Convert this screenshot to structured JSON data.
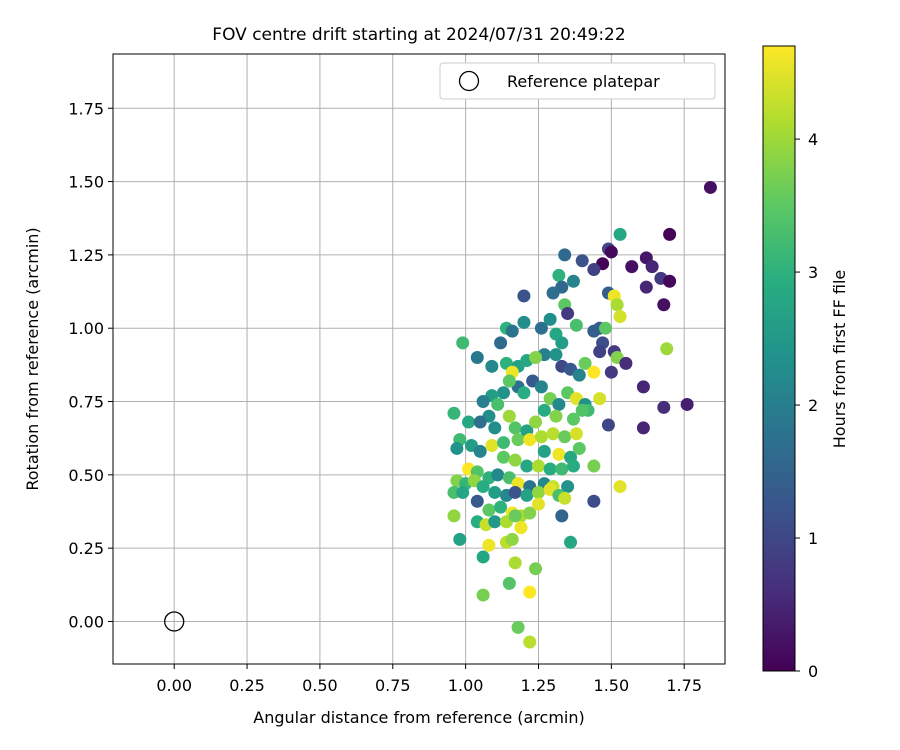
{
  "chart_data": {
    "type": "scatter",
    "title": "FOV centre drift starting at 2024/07/31 20:49:22",
    "xlabel": "Angular distance from reference (arcmin)",
    "ylabel": "Rotation from reference (arcmin)",
    "xlim": [
      -0.21,
      1.89
    ],
    "ylim": [
      -0.145,
      1.935
    ],
    "xticks": [
      "0.00",
      "0.25",
      "0.50",
      "0.75",
      "1.00",
      "1.25",
      "1.50",
      "1.75"
    ],
    "yticks": [
      "0.00",
      "0.25",
      "0.50",
      "0.75",
      "1.00",
      "1.25",
      "1.50",
      "1.75"
    ],
    "grid": true,
    "legend": {
      "placement": "top-right",
      "label": "Reference platepar"
    },
    "reference_point": {
      "x": 0.0,
      "y": 0.0
    },
    "colorbar": {
      "label": "Hours from first FF file",
      "range": [
        0,
        4.7
      ],
      "ticks": [
        "0",
        "1",
        "2",
        "3",
        "4"
      ],
      "colormap": "viridis"
    },
    "points": [
      [
        1.84,
        1.48,
        0.2
      ],
      [
        1.7,
        1.32,
        0.05
      ],
      [
        1.53,
        1.32,
        2.8
      ],
      [
        1.49,
        1.27,
        1.0
      ],
      [
        1.5,
        1.26,
        0.1
      ],
      [
        1.47,
        1.22,
        0.05
      ],
      [
        1.44,
        1.2,
        0.9
      ],
      [
        1.34,
        1.25,
        1.6
      ],
      [
        1.4,
        1.23,
        1.2
      ],
      [
        1.57,
        1.21,
        0.2
      ],
      [
        1.62,
        1.24,
        0.3
      ],
      [
        1.64,
        1.21,
        0.5
      ],
      [
        1.67,
        1.17,
        0.8
      ],
      [
        1.7,
        1.16,
        0.1
      ],
      [
        1.32,
        1.18,
        3.0
      ],
      [
        1.37,
        1.16,
        2.1
      ],
      [
        1.3,
        1.12,
        1.7
      ],
      [
        1.33,
        1.14,
        1.6
      ],
      [
        1.49,
        1.12,
        1.4
      ],
      [
        1.62,
        1.14,
        0.5
      ],
      [
        1.68,
        1.08,
        0.2
      ],
      [
        1.51,
        1.11,
        4.6
      ],
      [
        1.52,
        1.08,
        4.1
      ],
      [
        1.53,
        1.04,
        4.4
      ],
      [
        1.34,
        1.08,
        3.5
      ],
      [
        1.29,
        1.03,
        2.3
      ],
      [
        1.35,
        1.05,
        0.8
      ],
      [
        1.2,
        1.11,
        1.2
      ],
      [
        1.2,
        1.02,
        2.3
      ],
      [
        1.26,
        1.0,
        1.7
      ],
      [
        1.14,
        1.0,
        3.0
      ],
      [
        1.16,
        0.99,
        1.8
      ],
      [
        1.12,
        0.95,
        1.6
      ],
      [
        1.31,
        0.98,
        2.8
      ],
      [
        1.33,
        0.95,
        2.6
      ],
      [
        1.38,
        1.01,
        3.3
      ],
      [
        1.46,
        1.0,
        1.3
      ],
      [
        1.44,
        0.99,
        1.4
      ],
      [
        1.48,
        1.0,
        3.5
      ],
      [
        1.47,
        0.95,
        1.1
      ],
      [
        1.51,
        0.92,
        0.8
      ],
      [
        1.46,
        0.92,
        0.9
      ],
      [
        1.52,
        0.9,
        3.8
      ],
      [
        1.55,
        0.88,
        0.6
      ],
      [
        1.5,
        0.85,
        0.8
      ],
      [
        0.99,
        0.95,
        3.2
      ],
      [
        1.04,
        0.9,
        1.9
      ],
      [
        1.09,
        0.87,
        2.2
      ],
      [
        1.14,
        0.88,
        3.0
      ],
      [
        1.18,
        0.87,
        2.7
      ],
      [
        1.21,
        0.89,
        2.8
      ],
      [
        1.27,
        0.91,
        2.0
      ],
      [
        1.31,
        0.91,
        2.4
      ],
      [
        1.33,
        0.87,
        1.0
      ],
      [
        1.36,
        0.86,
        1.3
      ],
      [
        1.39,
        0.84,
        2.1
      ],
      [
        1.41,
        0.88,
        3.6
      ],
      [
        1.44,
        0.85,
        4.7
      ],
      [
        1.24,
        0.9,
        3.8
      ],
      [
        1.16,
        0.85,
        4.6
      ],
      [
        1.18,
        0.8,
        1.7
      ],
      [
        1.13,
        0.78,
        2.4
      ],
      [
        1.09,
        0.77,
        2.6
      ],
      [
        1.06,
        0.75,
        2.0
      ],
      [
        1.08,
        0.7,
        2.3
      ],
      [
        1.11,
        0.74,
        3.3
      ],
      [
        1.15,
        0.7,
        4.0
      ],
      [
        1.15,
        0.82,
        3.5
      ],
      [
        1.2,
        0.78,
        2.9
      ],
      [
        1.23,
        0.82,
        1.3
      ],
      [
        1.26,
        0.8,
        2.1
      ],
      [
        1.29,
        0.76,
        3.7
      ],
      [
        1.32,
        0.74,
        2.2
      ],
      [
        1.35,
        0.78,
        3.5
      ],
      [
        1.38,
        0.76,
        4.5
      ],
      [
        1.41,
        0.74,
        2.4
      ],
      [
        1.46,
        0.76,
        4.4
      ],
      [
        1.42,
        0.72,
        3.2
      ],
      [
        0.96,
        0.71,
        3.1
      ],
      [
        1.01,
        0.68,
        2.8
      ],
      [
        1.05,
        0.68,
        1.7
      ],
      [
        1.1,
        0.66,
        2.3
      ],
      [
        1.17,
        0.66,
        3.4
      ],
      [
        1.21,
        0.65,
        2.7
      ],
      [
        1.24,
        0.68,
        3.9
      ],
      [
        1.27,
        0.72,
        2.9
      ],
      [
        1.31,
        0.7,
        3.8
      ],
      [
        1.37,
        0.69,
        3.5
      ],
      [
        1.4,
        0.72,
        3.4
      ],
      [
        1.49,
        0.67,
        1.0
      ],
      [
        1.61,
        0.66,
        0.5
      ],
      [
        1.68,
        0.73,
        0.6
      ],
      [
        1.76,
        0.74,
        0.4
      ],
      [
        1.69,
        0.93,
        4.0
      ],
      [
        1.61,
        0.8,
        0.5
      ],
      [
        0.98,
        0.62,
        3.2
      ],
      [
        0.97,
        0.59,
        2.4
      ],
      [
        1.02,
        0.6,
        2.6
      ],
      [
        1.05,
        0.58,
        2.1
      ],
      [
        1.09,
        0.6,
        4.5
      ],
      [
        1.13,
        0.61,
        3.2
      ],
      [
        1.18,
        0.62,
        3.6
      ],
      [
        1.22,
        0.62,
        4.6
      ],
      [
        1.26,
        0.63,
        4.1
      ],
      [
        1.3,
        0.64,
        4.2
      ],
      [
        1.34,
        0.63,
        3.6
      ],
      [
        1.38,
        0.64,
        4.4
      ],
      [
        1.27,
        0.58,
        2.7
      ],
      [
        1.32,
        0.57,
        4.6
      ],
      [
        1.36,
        0.56,
        2.8
      ],
      [
        1.39,
        0.59,
        3.5
      ],
      [
        1.13,
        0.56,
        3.5
      ],
      [
        1.17,
        0.55,
        3.9
      ],
      [
        1.21,
        0.53,
        2.8
      ],
      [
        1.25,
        0.53,
        4.1
      ],
      [
        1.29,
        0.52,
        2.9
      ],
      [
        1.33,
        0.52,
        3.2
      ],
      [
        1.37,
        0.53,
        2.9
      ],
      [
        1.44,
        0.53,
        3.7
      ],
      [
        1.01,
        0.52,
        4.7
      ],
      [
        1.04,
        0.51,
        3.4
      ],
      [
        1.08,
        0.49,
        3.0
      ],
      [
        1.11,
        0.5,
        2.2
      ],
      [
        1.15,
        0.49,
        3.3
      ],
      [
        1.18,
        0.47,
        4.6
      ],
      [
        1.22,
        0.46,
        1.8
      ],
      [
        1.27,
        0.47,
        2.2
      ],
      [
        1.3,
        0.46,
        4.3
      ],
      [
        1.35,
        0.46,
        2.4
      ],
      [
        0.97,
        0.48,
        3.8
      ],
      [
        1.0,
        0.47,
        3.1
      ],
      [
        1.03,
        0.48,
        3.9
      ],
      [
        1.06,
        0.46,
        2.9
      ],
      [
        1.1,
        0.44,
        2.6
      ],
      [
        1.14,
        0.43,
        2.2
      ],
      [
        1.17,
        0.44,
        1.2
      ],
      [
        1.21,
        0.43,
        2.7
      ],
      [
        1.25,
        0.44,
        3.9
      ],
      [
        1.29,
        0.45,
        4.5
      ],
      [
        1.32,
        0.43,
        3.3
      ],
      [
        1.34,
        0.42,
        4.3
      ],
      [
        1.44,
        0.41,
        1.1
      ],
      [
        1.53,
        0.46,
        4.5
      ],
      [
        0.96,
        0.44,
        3.3
      ],
      [
        0.99,
        0.44,
        2.8
      ],
      [
        1.04,
        0.41,
        1.3
      ],
      [
        1.08,
        0.38,
        3.5
      ],
      [
        1.12,
        0.39,
        3.0
      ],
      [
        1.16,
        0.37,
        4.6
      ],
      [
        1.19,
        0.36,
        4.1
      ],
      [
        1.22,
        0.37,
        3.8
      ],
      [
        1.25,
        0.4,
        4.5
      ],
      [
        1.33,
        0.36,
        1.5
      ],
      [
        0.96,
        0.36,
        3.9
      ],
      [
        1.04,
        0.34,
        2.9
      ],
      [
        1.07,
        0.33,
        4.3
      ],
      [
        1.1,
        0.34,
        2.5
      ],
      [
        1.14,
        0.34,
        4.1
      ],
      [
        1.17,
        0.36,
        3.6
      ],
      [
        1.19,
        0.32,
        4.6
      ],
      [
        1.36,
        0.27,
        2.8
      ],
      [
        0.98,
        0.28,
        2.7
      ],
      [
        1.08,
        0.26,
        4.6
      ],
      [
        1.14,
        0.27,
        4.2
      ],
      [
        1.16,
        0.28,
        3.9
      ],
      [
        1.06,
        0.22,
        2.8
      ],
      [
        1.17,
        0.2,
        4.1
      ],
      [
        1.24,
        0.18,
        3.7
      ],
      [
        1.15,
        0.13,
        3.4
      ],
      [
        1.22,
        0.1,
        4.7
      ],
      [
        1.06,
        0.09,
        3.7
      ],
      [
        1.18,
        -0.02,
        3.6
      ],
      [
        1.22,
        -0.07,
        4.2
      ]
    ]
  }
}
